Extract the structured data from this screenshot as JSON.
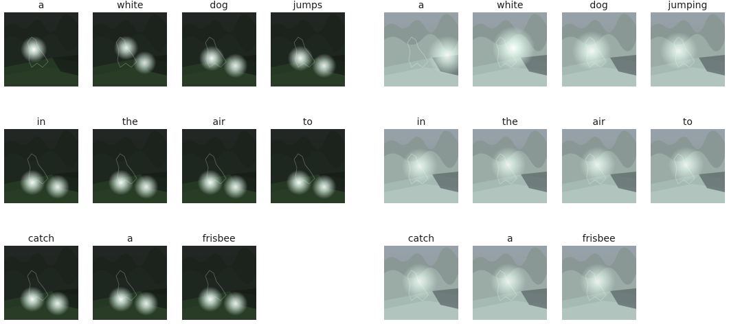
{
  "panels": [
    {
      "id": "left",
      "tone": "dark",
      "words": [
        "a",
        "white",
        "dog",
        "jumps",
        "in",
        "the",
        "air",
        "to",
        "catch",
        "a",
        "frisbee"
      ],
      "spots": [
        [
          [
            0.4,
            0.5,
            1.0
          ]
        ],
        [
          [
            0.45,
            0.48,
            0.8
          ],
          [
            0.7,
            0.68,
            0.7
          ]
        ],
        [
          [
            0.4,
            0.62,
            0.9
          ],
          [
            0.72,
            0.72,
            0.8
          ]
        ],
        [
          [
            0.4,
            0.62,
            0.9
          ],
          [
            0.72,
            0.72,
            0.8
          ]
        ],
        [
          [
            0.38,
            0.72,
            0.9
          ],
          [
            0.72,
            0.78,
            0.8
          ]
        ],
        [
          [
            0.38,
            0.72,
            0.9
          ],
          [
            0.72,
            0.78,
            0.8
          ]
        ],
        [
          [
            0.38,
            0.72,
            0.9
          ],
          [
            0.72,
            0.78,
            0.8
          ]
        ],
        [
          [
            0.38,
            0.72,
            0.9
          ],
          [
            0.72,
            0.78,
            0.8
          ]
        ],
        [
          [
            0.38,
            0.72,
            0.9
          ],
          [
            0.72,
            0.78,
            0.8
          ]
        ],
        [
          [
            0.38,
            0.72,
            0.9
          ],
          [
            0.72,
            0.78,
            0.8
          ]
        ],
        [
          [
            0.38,
            0.72,
            0.9
          ],
          [
            0.72,
            0.78,
            0.8
          ]
        ]
      ]
    },
    {
      "id": "right",
      "tone": "light",
      "words": [
        "a",
        "white",
        "dog",
        "jumping",
        "in",
        "the",
        "air",
        "to",
        "catch",
        "a",
        "frisbee"
      ],
      "spots": [
        [
          [
            0.85,
            0.58,
            0.8
          ]
        ],
        [
          [
            0.55,
            0.48,
            1.0
          ]
        ],
        [
          [
            0.4,
            0.52,
            0.8
          ]
        ],
        [
          [
            0.38,
            0.52,
            0.7
          ]
        ],
        [
          [
            0.48,
            0.5,
            0.6
          ]
        ],
        [
          [
            0.48,
            0.48,
            0.6
          ]
        ],
        [
          [
            0.48,
            0.48,
            0.6
          ]
        ],
        [
          [
            0.48,
            0.48,
            0.6
          ]
        ],
        [
          [
            0.48,
            0.48,
            0.6
          ]
        ],
        [
          [
            0.48,
            0.48,
            0.6
          ]
        ],
        [
          [
            0.48,
            0.48,
            0.6
          ]
        ]
      ]
    }
  ]
}
